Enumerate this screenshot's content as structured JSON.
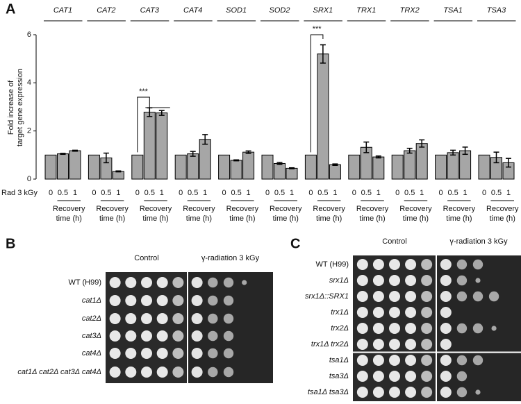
{
  "chart_data": {
    "type": "bar",
    "panel_label": "A",
    "categories": [
      "CAT1",
      "CAT2",
      "CAT3",
      "CAT4",
      "SOD1",
      "SOD2",
      "SRX1",
      "TRX1",
      "TRX2",
      "TSA1",
      "TSA3"
    ],
    "series": [
      {
        "name": "0",
        "color": "#a6a6a6",
        "values": [
          1,
          1,
          1,
          1,
          1,
          1,
          1,
          1,
          1,
          1,
          1
        ],
        "errors": [
          0,
          0,
          0,
          0,
          0,
          0,
          0,
          0,
          0,
          0,
          0
        ]
      },
      {
        "name": "0.5",
        "color": "#a6a6a6",
        "values": [
          1.05,
          0.88,
          2.78,
          1.05,
          0.78,
          0.65,
          5.2,
          1.32,
          1.18,
          1.1,
          0.9
        ],
        "errors": [
          0.02,
          0.2,
          0.18,
          0.1,
          0.02,
          0.04,
          0.38,
          0.22,
          0.1,
          0.1,
          0.22
        ]
      },
      {
        "name": "1",
        "color": "#a6a6a6",
        "values": [
          1.18,
          0.32,
          2.75,
          1.65,
          1.12,
          0.45,
          0.6,
          0.92,
          1.48,
          1.18,
          0.68
        ],
        "errors": [
          0.02,
          0.02,
          0.1,
          0.2,
          0.05,
          0.02,
          0.03,
          0.04,
          0.15,
          0.15,
          0.18
        ]
      }
    ],
    "ylabel": [
      "Fold increase of",
      "target gene expression"
    ],
    "xlabel": "Rad 3 kGy",
    "group_label": [
      "Recovery",
      "time (h)"
    ],
    "annotations": [
      "***",
      "***"
    ],
    "ylim": [
      0,
      6
    ],
    "yticks": [
      0,
      2,
      4,
      6
    ]
  },
  "panel_b": {
    "panel_label": "B",
    "headers": [
      "Control",
      "γ-radiation 3 kGy"
    ],
    "rows": [
      "WT (H99)",
      "cat1Δ",
      "cat2Δ",
      "cat3Δ",
      "cat4Δ",
      "cat1Δ cat2Δ cat3Δ cat4Δ"
    ]
  },
  "panel_c": {
    "panel_label": "C",
    "headers": [
      "Control",
      "γ-radiation 3 kGy"
    ],
    "rows": [
      "WT (H99)",
      "srx1Δ",
      "srx1Δ::SRX1",
      "trx1Δ",
      "trx2Δ",
      "trx1Δ trx2Δ",
      "tsa1Δ",
      "tsa3Δ",
      "tsa1Δ tsa3Δ"
    ]
  }
}
